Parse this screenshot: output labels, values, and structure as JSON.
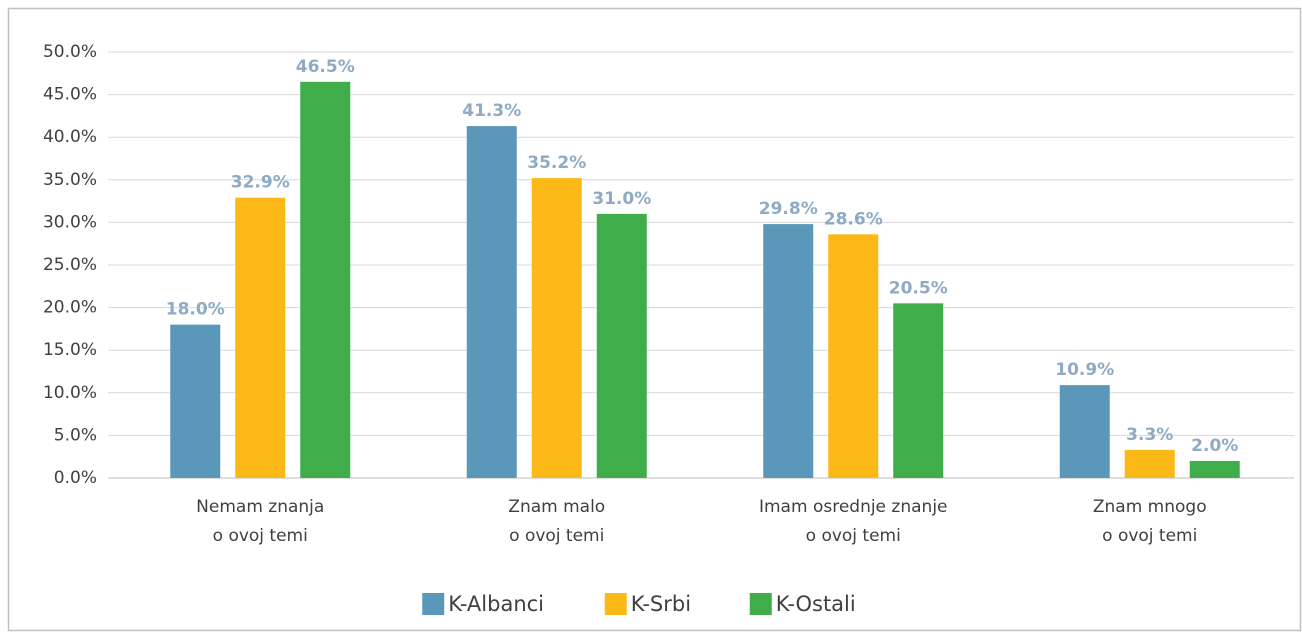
{
  "chart_data": {
    "type": "bar",
    "categories": [
      [
        "Nemam znanja",
        "o ovoj temi"
      ],
      [
        "Znam malo",
        "o ovoj temi"
      ],
      [
        "Imam osrednje znanje",
        "o ovoj temi"
      ],
      [
        "Znam mnogo",
        "o ovoj temi"
      ]
    ],
    "series": [
      {
        "name": "K-Albanci",
        "color": "#5b97b8",
        "values": [
          18.0,
          41.3,
          29.8,
          10.9
        ],
        "value_labels": [
          "18.0%",
          "41.3%",
          "29.8%",
          "10.9%"
        ]
      },
      {
        "name": "K-Srbi",
        "color": "#fbb817",
        "values": [
          32.9,
          35.2,
          28.6,
          3.3
        ],
        "value_labels": [
          "32.9%",
          "35.2%",
          "28.6%",
          "3.3%"
        ]
      },
      {
        "name": "K-Ostali",
        "color": "#3fae4a",
        "values": [
          46.5,
          31.0,
          20.5,
          2.0
        ],
        "value_labels": [
          "46.5%",
          "31.0%",
          "20.5%",
          "2.0%"
        ]
      }
    ],
    "ylim": [
      0,
      50
    ],
    "yticks": [
      {
        "value": 0,
        "label": "0.0%"
      },
      {
        "value": 5,
        "label": "5.0%"
      },
      {
        "value": 10,
        "label": "10.0%"
      },
      {
        "value": 15,
        "label": "15.0%"
      },
      {
        "value": 20,
        "label": "20.0%"
      },
      {
        "value": 25,
        "label": "25.0%"
      },
      {
        "value": 30,
        "label": "30.0%"
      },
      {
        "value": 35,
        "label": "35.0%"
      },
      {
        "value": 40,
        "label": "40.0%"
      },
      {
        "value": 45,
        "label": "45.0%"
      },
      {
        "value": 50,
        "label": "50.0%"
      }
    ],
    "grid": true,
    "legend": "bottom"
  }
}
